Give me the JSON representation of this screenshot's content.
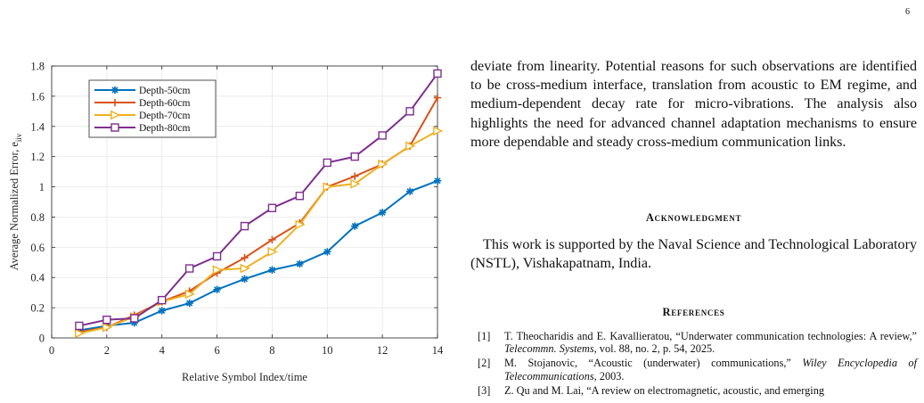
{
  "page": {
    "number": "6"
  },
  "chart_data": {
    "type": "line",
    "xlabel": "Relative Symbol Index/time",
    "ylabel": "Average Normalized Error, e",
    "ylabel_subscript": "iiv",
    "xlim": [
      0,
      14
    ],
    "ylim": [
      0,
      1.8
    ],
    "xticks": [
      "0",
      "2",
      "4",
      "6",
      "8",
      "10",
      "12",
      "14"
    ],
    "yticks": [
      "0",
      "0.2",
      "0.4",
      "0.6",
      "0.8",
      "1",
      "1.2",
      "1.4",
      "1.6",
      "1.8"
    ],
    "grid": true,
    "legend_position": "top-left",
    "x": [
      1,
      2,
      3,
      4,
      5,
      6,
      7,
      8,
      9,
      10,
      11,
      12,
      13,
      14
    ],
    "series": [
      {
        "name": "Depth-50cm",
        "color": "#0072BD",
        "marker": "asterisk",
        "values": [
          0.05,
          0.08,
          0.1,
          0.18,
          0.23,
          0.32,
          0.39,
          0.45,
          0.49,
          0.57,
          0.74,
          0.83,
          0.97,
          1.04
        ]
      },
      {
        "name": "Depth-60cm",
        "color": "#D95319",
        "marker": "plus",
        "values": [
          0.04,
          0.07,
          0.15,
          0.24,
          0.31,
          0.43,
          0.53,
          0.65,
          0.76,
          1.0,
          1.07,
          1.15,
          1.27,
          1.59
        ]
      },
      {
        "name": "Depth-70cm",
        "color": "#EDB120",
        "marker": "triangle-right",
        "values": [
          0.03,
          0.07,
          0.14,
          0.24,
          0.29,
          0.45,
          0.46,
          0.57,
          0.75,
          1.0,
          1.02,
          1.15,
          1.27,
          1.37
        ]
      },
      {
        "name": "Depth-80cm",
        "color": "#7E2F8E",
        "marker": "square",
        "values": [
          0.08,
          0.12,
          0.13,
          0.25,
          0.46,
          0.54,
          0.74,
          0.86,
          0.94,
          1.16,
          1.2,
          1.34,
          1.5,
          1.75
        ]
      }
    ]
  },
  "body": {
    "paragraph": "deviate from linearity. Potential reasons for such observations are identified to be cross-medium interface, translation from acoustic to EM regime, and medium-dependent decay rate for micro-vibrations. The analysis also highlights the need for advanced channel adaptation mechanisms to ensure more dependable and steady cross-medium communication links.",
    "ack_heading": "Acknowledgment",
    "ack_text": "This work is supported by the Naval Science and Technological Laboratory (NSTL), Vishakapatnam, India.",
    "ref_heading": "References"
  },
  "references": [
    {
      "num": "[1]",
      "text": "T. Theocharidis and E. Kavallieratou, “Underwater communication technologies: A review,” ",
      "venue": "Telecommn. Systems",
      "tail": ", vol. 88, no. 2, p. 54, 2025."
    },
    {
      "num": "[2]",
      "text": "M. Stojanovic, “Acoustic (underwater) communications,” ",
      "venue": "Wiley Encyclopedia of Telecommunications",
      "tail": ", 2003."
    },
    {
      "num": "[3]",
      "text": "Z. Qu and M. Lai, “A review on electromagnetic, acoustic, and emerging",
      "venue": "",
      "tail": ""
    }
  ]
}
